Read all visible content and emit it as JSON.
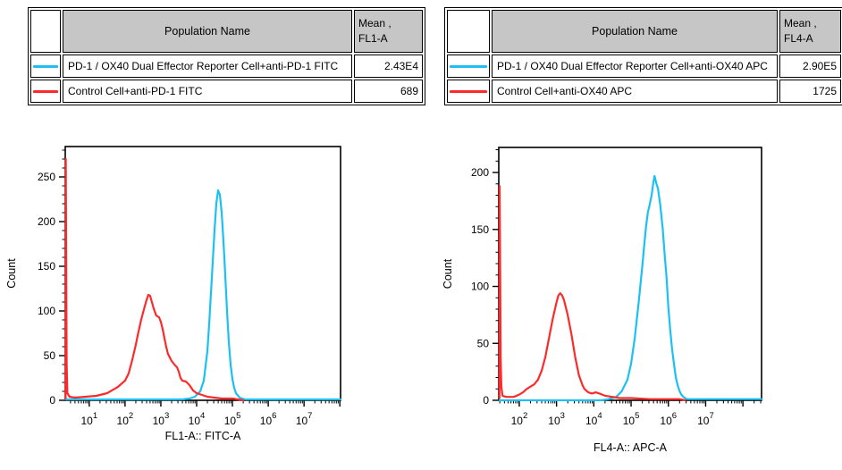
{
  "colors": {
    "reporter": "#1cc0f2",
    "control": "#fb2b2b",
    "table_header_bg": "#c6c6c6",
    "axis": "#000000"
  },
  "panels": [
    {
      "table": {
        "header": {
          "population": "Population Name",
          "mean_line1": "Mean ,",
          "mean_line2": "FL1-A"
        },
        "rows": [
          {
            "series": "reporter",
            "name": "PD-1 / OX40 Dual Effector Reporter Cell+anti-PD-1 FITC",
            "mean": "2.43E4"
          },
          {
            "series": "control",
            "name": "Control Cell+anti-PD-1 FITC",
            "mean": "689"
          }
        ]
      }
    },
    {
      "table": {
        "header": {
          "population": "Population Name",
          "mean_line1": "Mean ,",
          "mean_line2": "FL4-A"
        },
        "rows": [
          {
            "series": "reporter",
            "name": "PD-1 / OX40 Dual Effector Reporter Cell+anti-OX40 APC",
            "mean": "2.90E5"
          },
          {
            "series": "control",
            "name": "Control Cell+anti-OX40 APC",
            "mean": "1725"
          }
        ]
      }
    }
  ],
  "chart_data": [
    {
      "type": "line",
      "subtype": "flow-cytometry-histogram",
      "xlabel": "FL1-A:: FITC-A",
      "ylabel": "Count",
      "x_scale": "log10",
      "x_range_log10": [
        0.33,
        8.02
      ],
      "x_major_ticks_exp": [
        1,
        2,
        3,
        4,
        5,
        6,
        7
      ],
      "y_range": [
        0,
        284
      ],
      "y_major_ticks": [
        0,
        50,
        100,
        150,
        200,
        250
      ],
      "y_minor_step": 10,
      "grid": false,
      "legend": "table-above",
      "series": [
        {
          "name": "PD-1 / OX40 Dual Effector Reporter Cell+anti-PD-1 FITC",
          "color_key": "reporter",
          "points_log10x_count": [
            [
              0.34,
              1
            ],
            [
              1.0,
              1
            ],
            [
              2.0,
              1
            ],
            [
              3.0,
              1
            ],
            [
              3.6,
              1
            ],
            [
              3.8,
              2
            ],
            [
              3.95,
              4
            ],
            [
              4.1,
              10
            ],
            [
              4.2,
              22
            ],
            [
              4.3,
              55
            ],
            [
              4.35,
              85
            ],
            [
              4.4,
              120
            ],
            [
              4.45,
              155
            ],
            [
              4.5,
              190
            ],
            [
              4.55,
              220
            ],
            [
              4.6,
              235
            ],
            [
              4.65,
              230
            ],
            [
              4.7,
              210
            ],
            [
              4.75,
              178
            ],
            [
              4.8,
              140
            ],
            [
              4.85,
              100
            ],
            [
              4.9,
              65
            ],
            [
              4.95,
              40
            ],
            [
              5.0,
              24
            ],
            [
              5.05,
              14
            ],
            [
              5.1,
              8
            ],
            [
              5.2,
              3
            ],
            [
              5.35,
              1
            ],
            [
              5.8,
              1
            ],
            [
              6.5,
              1
            ],
            [
              7.2,
              1
            ],
            [
              8.02,
              1
            ]
          ]
        },
        {
          "name": "Control Cell+anti-PD-1 FITC",
          "color_key": "control",
          "points_log10x_count": [
            [
              0.34,
              2
            ],
            [
              0.345,
              270
            ],
            [
              0.36,
              120
            ],
            [
              0.37,
              40
            ],
            [
              0.39,
              8
            ],
            [
              0.45,
              4
            ],
            [
              0.6,
              3
            ],
            [
              0.9,
              4
            ],
            [
              1.2,
              5
            ],
            [
              1.5,
              8
            ],
            [
              1.8,
              15
            ],
            [
              2.0,
              22
            ],
            [
              2.1,
              30
            ],
            [
              2.2,
              45
            ],
            [
              2.3,
              62
            ],
            [
              2.35,
              72
            ],
            [
              2.45,
              90
            ],
            [
              2.55,
              105
            ],
            [
              2.6,
              112
            ],
            [
              2.65,
              118
            ],
            [
              2.7,
              117
            ],
            [
              2.75,
              110
            ],
            [
              2.8,
              103
            ],
            [
              2.87,
              95
            ],
            [
              2.95,
              93
            ],
            [
              3.0,
              88
            ],
            [
              3.05,
              80
            ],
            [
              3.1,
              70
            ],
            [
              3.15,
              60
            ],
            [
              3.2,
              52
            ],
            [
              3.3,
              44
            ],
            [
              3.4,
              39
            ],
            [
              3.45,
              37
            ],
            [
              3.5,
              32
            ],
            [
              3.55,
              25
            ],
            [
              3.6,
              22
            ],
            [
              3.7,
              21
            ],
            [
              3.8,
              17
            ],
            [
              3.9,
              11
            ],
            [
              4.0,
              8
            ],
            [
              4.15,
              6
            ],
            [
              4.3,
              4
            ],
            [
              4.5,
              3
            ],
            [
              4.7,
              2
            ],
            [
              5.0,
              2
            ],
            [
              5.3,
              0
            ]
          ]
        }
      ]
    },
    {
      "type": "line",
      "subtype": "flow-cytometry-histogram",
      "xlabel": "FL4-A:: APC-A",
      "ylabel": "Count",
      "x_scale": "log10",
      "x_range_log10": [
        1.45,
        8.5
      ],
      "x_major_ticks_exp": [
        2,
        3,
        4,
        5,
        6,
        7
      ],
      "y_range": [
        0,
        222
      ],
      "y_major_ticks": [
        0,
        50,
        100,
        150,
        200
      ],
      "y_minor_step": 10,
      "grid": false,
      "legend": "table-above",
      "series": [
        {
          "name": "PD-1 / OX40 Dual Effector Reporter Cell+anti-OX40 APC",
          "color_key": "reporter",
          "points_log10x_count": [
            [
              1.47,
              0
            ],
            [
              2.5,
              0
            ],
            [
              3.5,
              0
            ],
            [
              4.2,
              0
            ],
            [
              4.4,
              1
            ],
            [
              4.6,
              3
            ],
            [
              4.75,
              8
            ],
            [
              4.9,
              18
            ],
            [
              5.0,
              32
            ],
            [
              5.1,
              55
            ],
            [
              5.2,
              85
            ],
            [
              5.3,
              118
            ],
            [
              5.35,
              135
            ],
            [
              5.4,
              152
            ],
            [
              5.45,
              165
            ],
            [
              5.5,
              172
            ],
            [
              5.55,
              180
            ],
            [
              5.6,
              192
            ],
            [
              5.63,
              197
            ],
            [
              5.68,
              190
            ],
            [
              5.72,
              186
            ],
            [
              5.78,
              172
            ],
            [
              5.85,
              150
            ],
            [
              5.9,
              128
            ],
            [
              5.95,
              108
            ],
            [
              6.0,
              82
            ],
            [
              6.05,
              62
            ],
            [
              6.1,
              45
            ],
            [
              6.15,
              32
            ],
            [
              6.2,
              20
            ],
            [
              6.25,
              13
            ],
            [
              6.3,
              8
            ],
            [
              6.35,
              5
            ],
            [
              6.4,
              3
            ],
            [
              6.5,
              1
            ],
            [
              7.0,
              1
            ],
            [
              7.8,
              1
            ],
            [
              8.5,
              1
            ]
          ]
        },
        {
          "name": "Control Cell+anti-OX40 APC",
          "color_key": "control",
          "points_log10x_count": [
            [
              1.47,
              2
            ],
            [
              1.475,
              188
            ],
            [
              1.49,
              100
            ],
            [
              1.5,
              38
            ],
            [
              1.52,
              12
            ],
            [
              1.55,
              4
            ],
            [
              1.65,
              3
            ],
            [
              1.85,
              3
            ],
            [
              2.0,
              5
            ],
            [
              2.1,
              7
            ],
            [
              2.2,
              10
            ],
            [
              2.3,
              12
            ],
            [
              2.4,
              14
            ],
            [
              2.5,
              18
            ],
            [
              2.6,
              26
            ],
            [
              2.7,
              38
            ],
            [
              2.8,
              55
            ],
            [
              2.9,
              72
            ],
            [
              3.0,
              86
            ],
            [
              3.05,
              92
            ],
            [
              3.1,
              94
            ],
            [
              3.15,
              92
            ],
            [
              3.2,
              88
            ],
            [
              3.3,
              75
            ],
            [
              3.4,
              58
            ],
            [
              3.5,
              38
            ],
            [
              3.6,
              22
            ],
            [
              3.7,
              13
            ],
            [
              3.75,
              10
            ],
            [
              3.85,
              7
            ],
            [
              3.95,
              6
            ],
            [
              4.05,
              7
            ],
            [
              4.15,
              6
            ],
            [
              4.3,
              4
            ],
            [
              4.5,
              3
            ],
            [
              4.7,
              2
            ],
            [
              5.0,
              2
            ],
            [
              5.5,
              1
            ],
            [
              6.0,
              1
            ],
            [
              6.3,
              1
            ],
            [
              6.45,
              0
            ]
          ]
        }
      ]
    }
  ]
}
